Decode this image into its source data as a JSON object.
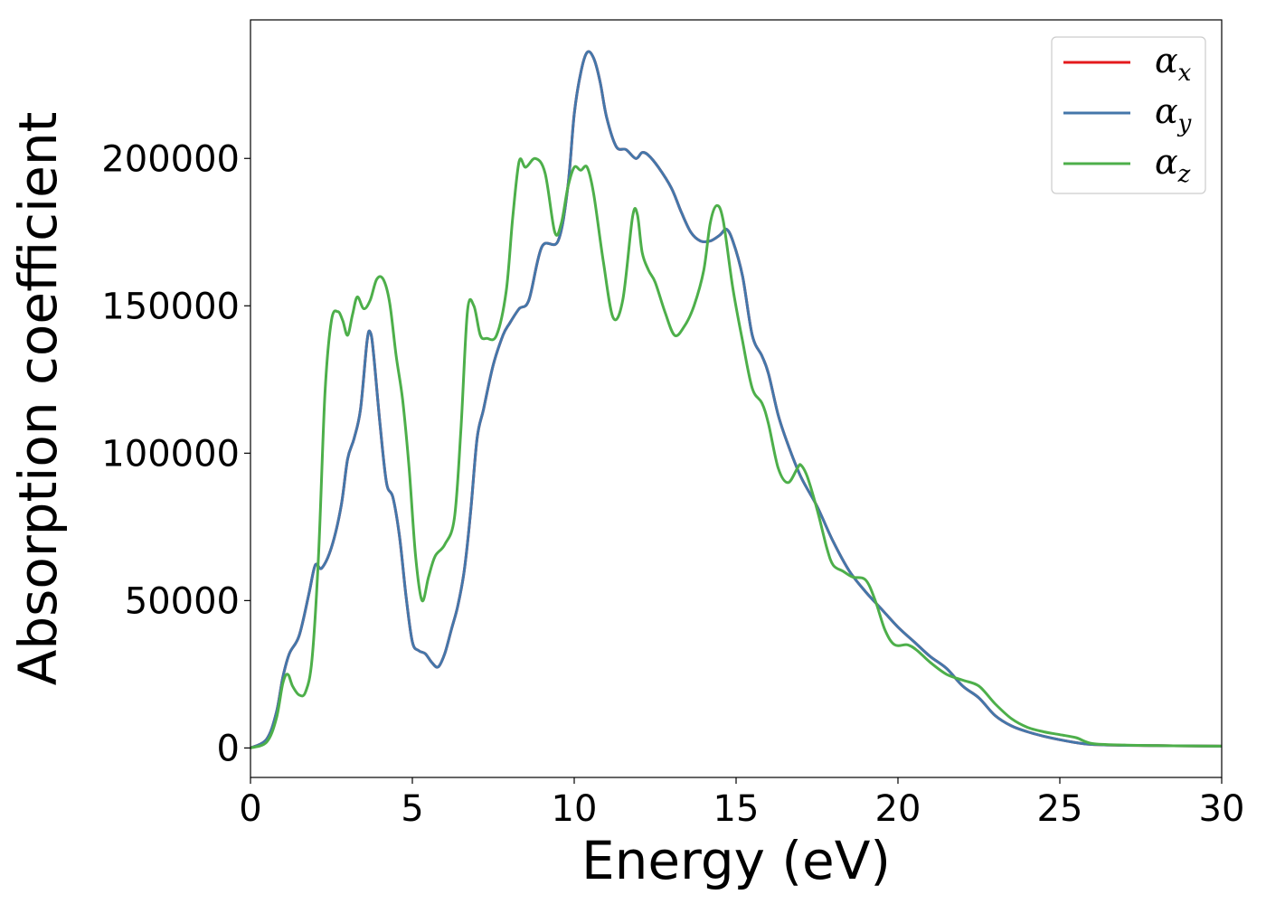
{
  "chart_data": {
    "type": "line",
    "title": "",
    "xlabel": "Energy (eV)",
    "ylabel": "Absorption coefficient",
    "xlim": [
      0,
      30
    ],
    "ylim": [
      -10000,
      247000
    ],
    "xticks": [
      0,
      5,
      10,
      15,
      20,
      25,
      30
    ],
    "yticks": [
      0,
      50000,
      100000,
      150000,
      200000
    ],
    "grid": false,
    "legend_position": "top-right",
    "series": [
      {
        "name": "αx",
        "symbol": "α",
        "subscript": "x",
        "color": "#e41a1c",
        "x": [
          0,
          0.5,
          0.8,
          1.0,
          1.2,
          1.5,
          1.8,
          2.0,
          2.2,
          2.5,
          2.8,
          3.0,
          3.2,
          3.4,
          3.6,
          3.7,
          3.8,
          4.0,
          4.2,
          4.4,
          4.6,
          4.8,
          5.0,
          5.2,
          5.4,
          5.6,
          5.8,
          6.0,
          6.2,
          6.4,
          6.6,
          6.8,
          7.0,
          7.2,
          7.5,
          7.8,
          8.0,
          8.3,
          8.6,
          9.0,
          9.5,
          9.8,
          10.0,
          10.2,
          10.4,
          10.6,
          10.8,
          11.0,
          11.3,
          11.6,
          11.9,
          12.1,
          12.3,
          12.6,
          13.0,
          13.3,
          13.6,
          13.9,
          14.2,
          14.5,
          14.7,
          14.9,
          15.2,
          15.5,
          15.8,
          16.0,
          16.3,
          16.6,
          17.0,
          17.5,
          18.0,
          18.5,
          19.0,
          19.5,
          20.0,
          20.5,
          21.0,
          21.5,
          22.0,
          22.5,
          23.0,
          23.5,
          24.0,
          24.5,
          25.0,
          25.5,
          26.0,
          27.0,
          28.0,
          29.0,
          30.0
        ],
        "y": [
          0,
          3000,
          12000,
          24000,
          32000,
          38000,
          52000,
          62000,
          61000,
          68000,
          82000,
          98000,
          105000,
          115000,
          138000,
          141000,
          134000,
          110000,
          90000,
          85000,
          72000,
          52000,
          36000,
          33000,
          32000,
          29000,
          27500,
          32000,
          40000,
          48000,
          60000,
          80000,
          105000,
          115000,
          130000,
          140000,
          144000,
          149000,
          152000,
          170000,
          172000,
          190000,
          215000,
          229000,
          236000,
          234000,
          226000,
          214000,
          204000,
          203000,
          200000,
          202000,
          201000,
          197000,
          190000,
          182000,
          175000,
          172000,
          172000,
          174000,
          176000,
          172000,
          160000,
          140000,
          133000,
          127000,
          113000,
          103000,
          92000,
          82000,
          70000,
          60000,
          53000,
          47000,
          41000,
          36000,
          31000,
          27000,
          21000,
          17000,
          11000,
          7500,
          5500,
          4000,
          2800,
          1800,
          1200,
          900,
          800,
          700,
          600
        ]
      },
      {
        "name": "αy",
        "symbol": "α",
        "subscript": "y",
        "color": "#4477aa",
        "x": [
          0,
          0.5,
          0.8,
          1.0,
          1.2,
          1.5,
          1.8,
          2.0,
          2.2,
          2.5,
          2.8,
          3.0,
          3.2,
          3.4,
          3.6,
          3.7,
          3.8,
          4.0,
          4.2,
          4.4,
          4.6,
          4.8,
          5.0,
          5.2,
          5.4,
          5.6,
          5.8,
          6.0,
          6.2,
          6.4,
          6.6,
          6.8,
          7.0,
          7.2,
          7.5,
          7.8,
          8.0,
          8.3,
          8.6,
          9.0,
          9.5,
          9.8,
          10.0,
          10.2,
          10.4,
          10.6,
          10.8,
          11.0,
          11.3,
          11.6,
          11.9,
          12.1,
          12.3,
          12.6,
          13.0,
          13.3,
          13.6,
          13.9,
          14.2,
          14.5,
          14.7,
          14.9,
          15.2,
          15.5,
          15.8,
          16.0,
          16.3,
          16.6,
          17.0,
          17.5,
          18.0,
          18.5,
          19.0,
          19.5,
          20.0,
          20.5,
          21.0,
          21.5,
          22.0,
          22.5,
          23.0,
          23.5,
          24.0,
          24.5,
          25.0,
          25.5,
          26.0,
          27.0,
          28.0,
          29.0,
          30.0
        ],
        "y": [
          0,
          3000,
          12000,
          24000,
          32000,
          38000,
          52000,
          62000,
          61000,
          68000,
          82000,
          98000,
          105000,
          115000,
          138000,
          141000,
          134000,
          110000,
          90000,
          85000,
          72000,
          52000,
          36000,
          33000,
          32000,
          29000,
          27500,
          32000,
          40000,
          48000,
          60000,
          80000,
          105000,
          115000,
          130000,
          140000,
          144000,
          149000,
          152000,
          170000,
          172000,
          190000,
          215000,
          229000,
          236000,
          234000,
          226000,
          214000,
          204000,
          203000,
          200000,
          202000,
          201000,
          197000,
          190000,
          182000,
          175000,
          172000,
          172000,
          174000,
          176000,
          172000,
          160000,
          140000,
          133000,
          127000,
          113000,
          103000,
          92000,
          82000,
          70000,
          60000,
          53000,
          47000,
          41000,
          36000,
          31000,
          27000,
          21000,
          17000,
          11000,
          7500,
          5500,
          4000,
          2800,
          1800,
          1200,
          900,
          800,
          700,
          600
        ]
      },
      {
        "name": "αz",
        "symbol": "α",
        "subscript": "z",
        "color": "#4daf4a",
        "x": [
          0,
          0.5,
          0.8,
          1.0,
          1.15,
          1.3,
          1.5,
          1.7,
          1.9,
          2.1,
          2.3,
          2.5,
          2.7,
          2.85,
          3.0,
          3.15,
          3.3,
          3.5,
          3.7,
          3.9,
          4.1,
          4.3,
          4.5,
          4.7,
          4.9,
          5.1,
          5.3,
          5.5,
          5.7,
          6.0,
          6.3,
          6.5,
          6.7,
          6.9,
          7.1,
          7.3,
          7.6,
          7.9,
          8.1,
          8.3,
          8.5,
          8.8,
          9.1,
          9.4,
          9.6,
          9.8,
          10.0,
          10.2,
          10.4,
          10.6,
          10.9,
          11.2,
          11.5,
          11.8,
          11.95,
          12.1,
          12.3,
          12.5,
          12.8,
          13.1,
          13.4,
          13.7,
          14.0,
          14.2,
          14.4,
          14.6,
          14.9,
          15.2,
          15.5,
          15.8,
          16.0,
          16.3,
          16.6,
          16.9,
          17.0,
          17.2,
          17.5,
          17.8,
          18.0,
          18.3,
          18.6,
          19.0,
          19.3,
          19.6,
          19.9,
          20.3,
          20.6,
          21.0,
          21.5,
          22.0,
          22.5,
          23.0,
          23.5,
          24.0,
          24.5,
          25.0,
          25.5,
          26.0,
          27.0,
          28.0,
          29.0,
          30.0
        ],
        "y": [
          0,
          2000,
          10000,
          22000,
          25000,
          21000,
          18000,
          19000,
          30000,
          65000,
          120000,
          145000,
          148000,
          145000,
          140000,
          147000,
          153000,
          149000,
          152000,
          159000,
          159000,
          151000,
          133000,
          118000,
          95000,
          65000,
          50000,
          58000,
          65000,
          69000,
          78000,
          108000,
          148000,
          150000,
          140000,
          139000,
          140000,
          155000,
          180000,
          199000,
          197000,
          200000,
          195000,
          175000,
          178000,
          190000,
          197000,
          196000,
          197000,
          188000,
          165000,
          146000,
          152000,
          180000,
          181000,
          168000,
          162000,
          158000,
          148000,
          140000,
          143000,
          150000,
          162000,
          178000,
          184000,
          179000,
          156000,
          138000,
          122000,
          117000,
          110000,
          95000,
          90000,
          95000,
          96000,
          92000,
          81000,
          68000,
          62000,
          60000,
          58000,
          57000,
          50000,
          40000,
          35000,
          35000,
          33000,
          29000,
          25000,
          23000,
          21000,
          15000,
          10000,
          7000,
          5500,
          4500,
          3500,
          1500,
          1000,
          800,
          700,
          600
        ]
      }
    ]
  }
}
